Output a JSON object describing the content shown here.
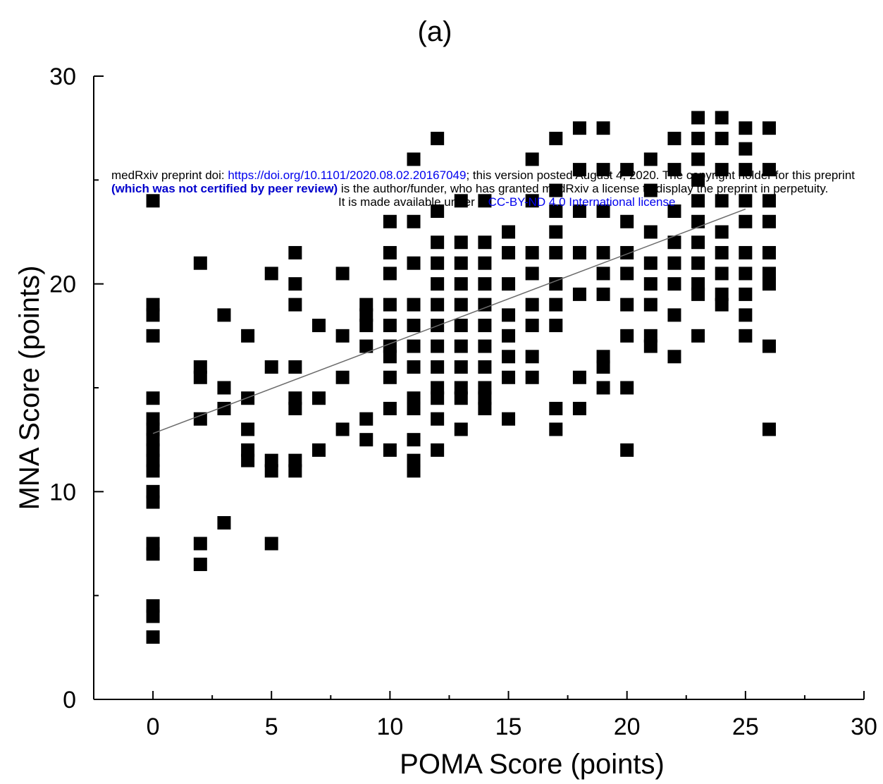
{
  "chart_data": {
    "type": "scatter",
    "title": "(a)",
    "xlabel": "POMA Score (points)",
    "ylabel": "MNA Score (points)",
    "xlim": [
      -2.5,
      30
    ],
    "ylim": [
      0,
      30
    ],
    "x_ticks": [
      0,
      5,
      10,
      15,
      20,
      25,
      30
    ],
    "y_ticks": [
      0,
      10,
      20,
      30
    ],
    "x_tick_labels": [
      "0",
      "5",
      "10",
      "15",
      "20",
      "25",
      "30"
    ],
    "y_tick_labels": [
      "0",
      "10",
      "20",
      "30"
    ],
    "grid": false,
    "marker_color": "#000000",
    "series": [
      {
        "points": [
          [
            0,
            24
          ],
          [
            0,
            19
          ],
          [
            0,
            18.5
          ],
          [
            0,
            17.5
          ],
          [
            0,
            14.5
          ],
          [
            0,
            13.5
          ],
          [
            0,
            13
          ],
          [
            0,
            12.5
          ],
          [
            0,
            12
          ],
          [
            0,
            11.5
          ],
          [
            0,
            11
          ],
          [
            0,
            10
          ],
          [
            0,
            9.5
          ],
          [
            0,
            7.5
          ],
          [
            0,
            7
          ],
          [
            0,
            4.5
          ],
          [
            0,
            4
          ],
          [
            0,
            3
          ],
          [
            2,
            21
          ],
          [
            2,
            16
          ],
          [
            2,
            15.5
          ],
          [
            2,
            13.5
          ],
          [
            2,
            7.5
          ],
          [
            2,
            6.5
          ],
          [
            3,
            18.5
          ],
          [
            3,
            15
          ],
          [
            3,
            14
          ],
          [
            3,
            8.5
          ],
          [
            4,
            17.5
          ],
          [
            4,
            14.5
          ],
          [
            4,
            13
          ],
          [
            4,
            12
          ],
          [
            4,
            11.5
          ],
          [
            5,
            20.5
          ],
          [
            5,
            16
          ],
          [
            5,
            11.5
          ],
          [
            5,
            11
          ],
          [
            5,
            7.5
          ],
          [
            6,
            21.5
          ],
          [
            6,
            20
          ],
          [
            6,
            19
          ],
          [
            6,
            16
          ],
          [
            6,
            14.5
          ],
          [
            6,
            14
          ],
          [
            6,
            11.5
          ],
          [
            6,
            11
          ],
          [
            7,
            18
          ],
          [
            7,
            14.5
          ],
          [
            7,
            12
          ],
          [
            8,
            20.5
          ],
          [
            8,
            17.5
          ],
          [
            8,
            15.5
          ],
          [
            8,
            13
          ],
          [
            9,
            19
          ],
          [
            9,
            18.5
          ],
          [
            9,
            18
          ],
          [
            9,
            17
          ],
          [
            9,
            13.5
          ],
          [
            9,
            12.5
          ],
          [
            10,
            23
          ],
          [
            10,
            21.5
          ],
          [
            10,
            20.5
          ],
          [
            10,
            19
          ],
          [
            10,
            18
          ],
          [
            10,
            17
          ],
          [
            10,
            16.5
          ],
          [
            10,
            15.5
          ],
          [
            10,
            14
          ],
          [
            10,
            12
          ],
          [
            11,
            26
          ],
          [
            11,
            23
          ],
          [
            11,
            21
          ],
          [
            11,
            19
          ],
          [
            11,
            18
          ],
          [
            11,
            17
          ],
          [
            11,
            16
          ],
          [
            11,
            14.5
          ],
          [
            11,
            14
          ],
          [
            11,
            12.5
          ],
          [
            11,
            11.5
          ],
          [
            11,
            11
          ],
          [
            12,
            27
          ],
          [
            12,
            23.5
          ],
          [
            12,
            22
          ],
          [
            12,
            21
          ],
          [
            12,
            20
          ],
          [
            12,
            19
          ],
          [
            12,
            18
          ],
          [
            12,
            17
          ],
          [
            12,
            16
          ],
          [
            12,
            15
          ],
          [
            12,
            14.5
          ],
          [
            12,
            13.5
          ],
          [
            12,
            12
          ],
          [
            13,
            24
          ],
          [
            13,
            22
          ],
          [
            13,
            21
          ],
          [
            13,
            20
          ],
          [
            13,
            19
          ],
          [
            13,
            18
          ],
          [
            13,
            17
          ],
          [
            13,
            16
          ],
          [
            13,
            15
          ],
          [
            13,
            14.5
          ],
          [
            13,
            13
          ],
          [
            14,
            24
          ],
          [
            14,
            22
          ],
          [
            14,
            21
          ],
          [
            14,
            20
          ],
          [
            14,
            19
          ],
          [
            14,
            18
          ],
          [
            14,
            17
          ],
          [
            14,
            16
          ],
          [
            14,
            15
          ],
          [
            14,
            14.5
          ],
          [
            14,
            14
          ],
          [
            15,
            22.5
          ],
          [
            15,
            21.5
          ],
          [
            15,
            20
          ],
          [
            15,
            18.5
          ],
          [
            15,
            17.5
          ],
          [
            15,
            16.5
          ],
          [
            15,
            15.5
          ],
          [
            15,
            13.5
          ],
          [
            16,
            26
          ],
          [
            16,
            24
          ],
          [
            16,
            21.5
          ],
          [
            16,
            20.5
          ],
          [
            16,
            19
          ],
          [
            16,
            18
          ],
          [
            16,
            16.5
          ],
          [
            16,
            15.5
          ],
          [
            17,
            27
          ],
          [
            17,
            24.5
          ],
          [
            17,
            23.5
          ],
          [
            17,
            22.5
          ],
          [
            17,
            21.5
          ],
          [
            17,
            20
          ],
          [
            17,
            19
          ],
          [
            17,
            18
          ],
          [
            17,
            14
          ],
          [
            17,
            13
          ],
          [
            18,
            27.5
          ],
          [
            18,
            25.5
          ],
          [
            18,
            23.5
          ],
          [
            18,
            21.5
          ],
          [
            18,
            19.5
          ],
          [
            18,
            15.5
          ],
          [
            18,
            14
          ],
          [
            19,
            27.5
          ],
          [
            19,
            25.5
          ],
          [
            19,
            23.5
          ],
          [
            19,
            21.5
          ],
          [
            19,
            20.5
          ],
          [
            19,
            19.5
          ],
          [
            19,
            16.5
          ],
          [
            19,
            16
          ],
          [
            19,
            15
          ],
          [
            20,
            25.5
          ],
          [
            20,
            23
          ],
          [
            20,
            21.5
          ],
          [
            20,
            20.5
          ],
          [
            20,
            19
          ],
          [
            20,
            17.5
          ],
          [
            20,
            15
          ],
          [
            20,
            12
          ],
          [
            21,
            26
          ],
          [
            21,
            24.5
          ],
          [
            21,
            22.5
          ],
          [
            21,
            21
          ],
          [
            21,
            20
          ],
          [
            21,
            19
          ],
          [
            21,
            17.5
          ],
          [
            21,
            17
          ],
          [
            22,
            27
          ],
          [
            22,
            25.5
          ],
          [
            22,
            23.5
          ],
          [
            22,
            22
          ],
          [
            22,
            21
          ],
          [
            22,
            20
          ],
          [
            22,
            18.5
          ],
          [
            22,
            16.5
          ],
          [
            23,
            28
          ],
          [
            23,
            27
          ],
          [
            23,
            26
          ],
          [
            23,
            25
          ],
          [
            23,
            24
          ],
          [
            23,
            23
          ],
          [
            23,
            22
          ],
          [
            23,
            21
          ],
          [
            23,
            20
          ],
          [
            23,
            19.5
          ],
          [
            23,
            17.5
          ],
          [
            24,
            28
          ],
          [
            24,
            27
          ],
          [
            24,
            25.5
          ],
          [
            24,
            24
          ],
          [
            24,
            22.5
          ],
          [
            24,
            21.5
          ],
          [
            24,
            20.5
          ],
          [
            24,
            19.5
          ],
          [
            24,
            19
          ],
          [
            25,
            27.5
          ],
          [
            25,
            26.5
          ],
          [
            25,
            25.5
          ],
          [
            25,
            24
          ],
          [
            25,
            23
          ],
          [
            25,
            21.5
          ],
          [
            25,
            20.5
          ],
          [
            25,
            19.5
          ],
          [
            25,
            18.5
          ],
          [
            25,
            17.5
          ],
          [
            26,
            27.5
          ],
          [
            26,
            25.5
          ],
          [
            26,
            24
          ],
          [
            26,
            23
          ],
          [
            26,
            21.5
          ],
          [
            26,
            20.5
          ],
          [
            26,
            20
          ],
          [
            26,
            17
          ],
          [
            26,
            13
          ]
        ]
      }
    ],
    "regression_line": {
      "x": [
        0,
        25
      ],
      "y": [
        12.8,
        23.6
      ]
    }
  },
  "notice": {
    "line1_prefix": "medRxiv preprint doi: ",
    "line1_link": "https://doi.org/10.1101/2020.08.02.20167049",
    "line1_suffix": "; this version posted August 4, 2020. The copyright holder for this preprint",
    "line2_bold": "(which was not certified by peer review)",
    "line2_suffix": " is the author/funder, who has granted medRxiv a license to display the preprint in perpetuity.",
    "line3_prefix": "It is made available under a ",
    "line3_link": "CC-BY-ND 4.0 International license",
    "line3_suffix": " ."
  }
}
